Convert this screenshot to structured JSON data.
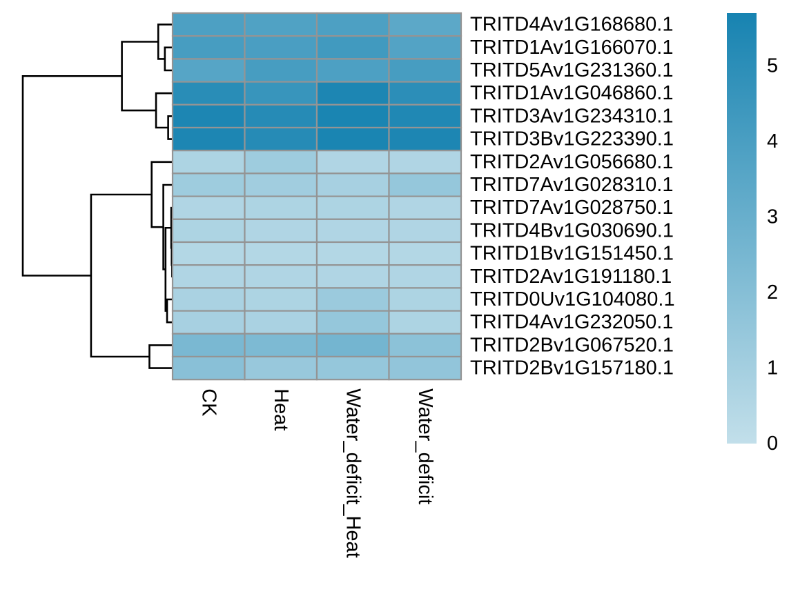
{
  "chart_data": {
    "type": "heatmap",
    "title": "",
    "xlabel": "",
    "ylabel": "",
    "columns": [
      "CK",
      "Heat",
      "Water_deficit_Heat",
      "Water_deficit"
    ],
    "rows": [
      "TRITD4Av1G168680.1",
      "TRITD1Av1G166070.1",
      "TRITD5Av1G231360.1",
      "TRITD1Av1G046860.1",
      "TRITD3Av1G234310.1",
      "TRITD3Bv1G223390.1",
      "TRITD2Av1G056680.1",
      "TRITD7Av1G028310.1",
      "TRITD7Av1G028750.1",
      "TRITD4Bv1G030690.1",
      "TRITD1Bv1G151450.1",
      "TRITD2Av1G191180.1",
      "TRITD0Uv1G104080.1",
      "TRITD4Av1G232050.1",
      "TRITD2Bv1G067520.1",
      "TRITD2Bv1G157180.1"
    ],
    "values": [
      [
        3.9,
        3.8,
        3.9,
        3.4
      ],
      [
        4.1,
        4.0,
        4.3,
        3.7
      ],
      [
        3.6,
        4.1,
        3.9,
        4.1
      ],
      [
        5.1,
        4.6,
        5.5,
        5.0
      ],
      [
        5.5,
        5.2,
        5.6,
        5.4
      ],
      [
        5.5,
        5.2,
        5.6,
        5.5
      ],
      [
        0.7,
        1.2,
        0.6,
        0.6
      ],
      [
        1.2,
        1.1,
        0.9,
        1.5
      ],
      [
        0.6,
        0.7,
        0.7,
        0.6
      ],
      [
        0.7,
        0.6,
        0.6,
        0.6
      ],
      [
        0.5,
        0.5,
        0.5,
        0.5
      ],
      [
        0.6,
        0.6,
        0.6,
        0.6
      ],
      [
        0.8,
        0.7,
        1.3,
        0.7
      ],
      [
        0.9,
        0.8,
        1.5,
        0.7
      ],
      [
        2.4,
        2.3,
        2.6,
        1.8
      ],
      [
        1.9,
        1.4,
        1.5,
        1.6
      ]
    ],
    "color_scale": {
      "min": 0,
      "max": 5.7,
      "low_color": "#c2dfea",
      "high_color": "#1783b1",
      "ticks": [
        0,
        1,
        2,
        3,
        4,
        5
      ]
    },
    "cell_border_color": "#949494",
    "dendrogram": {
      "side": "left",
      "line_color": "#000000",
      "merges": [
        [
          -2,
          -3,
          0.35
        ],
        [
          -1,
          1,
          0.65
        ],
        [
          -5,
          -6,
          0.2
        ],
        [
          -4,
          3,
          0.75
        ],
        [
          2,
          4,
          2.3
        ],
        [
          -11,
          -12,
          0.02
        ],
        [
          -10,
          6,
          0.04
        ],
        [
          -9,
          7,
          0.06
        ],
        [
          -13,
          -14,
          0.25
        ],
        [
          8,
          9,
          0.32
        ],
        [
          -8,
          10,
          0.42
        ],
        [
          -7,
          11,
          0.95
        ],
        [
          -15,
          -16,
          1.05
        ],
        [
          12,
          13,
          3.7
        ],
        [
          5,
          14,
          6.8
        ]
      ],
      "max_height": 6.8
    },
    "legend_placement": "right"
  }
}
